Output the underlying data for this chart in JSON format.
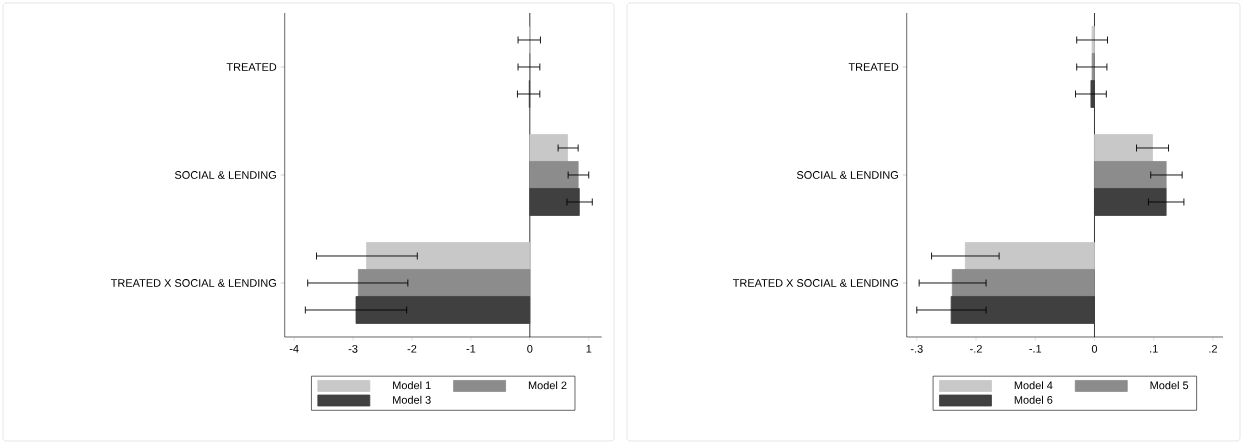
{
  "chart_data": [
    {
      "type": "bar",
      "orientation": "horizontal",
      "categories": [
        "TREATED",
        "SOCIAL & LENDING",
        "TREATED X SOCIAL & LENDING"
      ],
      "series": [
        {
          "name": "Model 1",
          "color": "#c8c8c8",
          "values": [
            0,
            0.64,
            -2.77
          ],
          "errors": [
            [
              -0.2,
              0.18
            ],
            [
              0.48,
              0.82
            ],
            [
              -3.62,
              -1.91
            ]
          ]
        },
        {
          "name": "Model 2",
          "color": "#8c8c8c",
          "values": [
            0,
            0.82,
            -2.91
          ],
          "errors": [
            [
              -0.2,
              0.17
            ],
            [
              0.65,
              1.0
            ],
            [
              -3.77,
              -2.07
            ]
          ]
        },
        {
          "name": "Model 3",
          "color": "#404040",
          "values": [
            -0.01,
            0.84,
            -2.95
          ],
          "errors": [
            [
              -0.21,
              0.17
            ],
            [
              0.63,
              1.06
            ],
            [
              -3.81,
              -2.09
            ]
          ]
        }
      ],
      "xlim": [
        -4.16,
        1.22
      ],
      "xticks": [
        -4,
        -3,
        -2,
        -1,
        0,
        1
      ],
      "ref_lines": [
        {
          "axis": "x",
          "value": 0
        }
      ],
      "legend": "bottom"
    },
    {
      "type": "bar",
      "orientation": "horizontal",
      "categories": [
        "TREATED",
        "SOCIAL & LENDING",
        "TREATED X SOCIAL & LENDING"
      ],
      "series": [
        {
          "name": "Model 4",
          "color": "#c8c8c8",
          "values": [
            -0.004,
            0.098,
            -0.218
          ],
          "errors": [
            [
              -0.03,
              0.022
            ],
            [
              0.071,
              0.125
            ],
            [
              -0.275,
              -0.161
            ]
          ]
        },
        {
          "name": "Model 5",
          "color": "#8c8c8c",
          "values": [
            -0.004,
            0.121,
            -0.24
          ],
          "errors": [
            [
              -0.03,
              0.021
            ],
            [
              0.095,
              0.148
            ],
            [
              -0.296,
              -0.183
            ]
          ]
        },
        {
          "name": "Model 6",
          "color": "#404040",
          "values": [
            -0.006,
            0.121,
            -0.242
          ],
          "errors": [
            [
              -0.032,
              0.02
            ],
            [
              0.091,
              0.151
            ],
            [
              -0.3,
              -0.183
            ]
          ]
        }
      ],
      "xlim": [
        -0.317,
        0.217
      ],
      "xticks": [
        {
          "value": -0.3,
          "label": "-.3"
        },
        {
          "value": -0.2,
          "label": "-.2"
        },
        {
          "value": -0.1,
          "label": "-.1"
        },
        0,
        {
          "value": 0.1,
          "label": ".1"
        },
        {
          "value": 0.2,
          "label": ".2"
        }
      ],
      "ref_lines": [
        {
          "axis": "x",
          "value": 0
        }
      ],
      "legend": "bottom"
    }
  ]
}
